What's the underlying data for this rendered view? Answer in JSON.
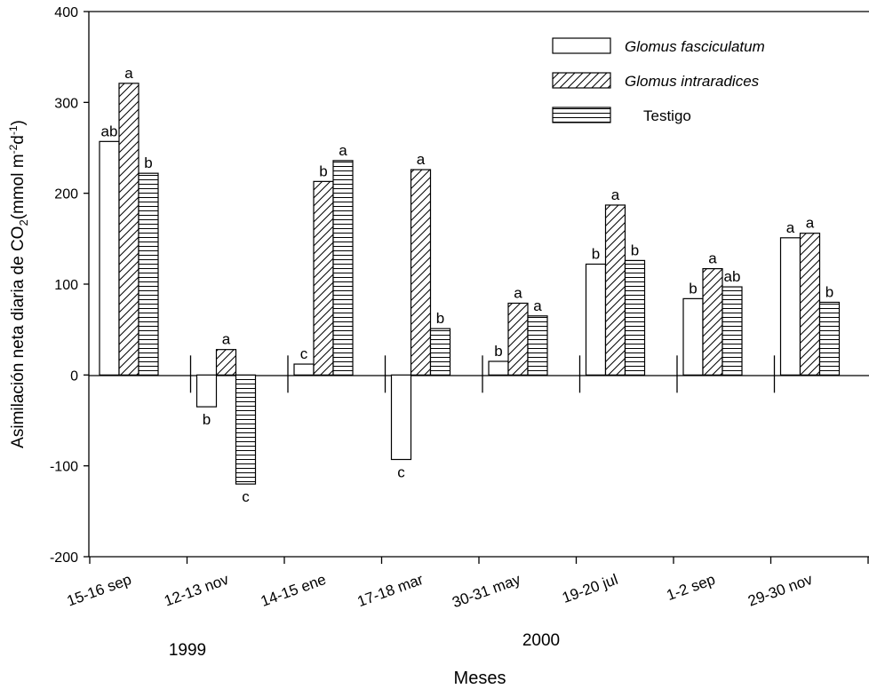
{
  "chart_data": {
    "type": "bar",
    "xlabel": "Meses",
    "ylabel_main": "Asimilación neta diaria de CO",
    "ylabel_sub": "2",
    "ylabel_units": "(mmol m",
    "ylabel_units_sup1": "-2",
    "ylabel_units_d": "d",
    "ylabel_units_sup2": "-1",
    "ylabel_units_close": ")",
    "ylim": [
      -200,
      400
    ],
    "yticks": [
      -200,
      -100,
      0,
      100,
      200,
      300,
      400
    ],
    "ytick_labels": [
      "-200",
      "-100",
      "0",
      "100",
      "200",
      "300",
      "400"
    ],
    "categories": [
      "15-16 sep",
      "12-13 nov",
      "14-15 ene",
      "17-18 mar",
      "30-31 may",
      "19-20 jul",
      "1-2 sep",
      "29-30 nov"
    ],
    "year_labels": [
      "1999",
      "2000"
    ],
    "series": [
      {
        "name": "Glomus fasciculatum",
        "pattern": "empty",
        "values": [
          257,
          -35,
          12,
          -93,
          15,
          122,
          84,
          151
        ],
        "letters": [
          "ab",
          "b",
          "c",
          "c",
          "b",
          "b",
          "b",
          "a"
        ]
      },
      {
        "name": "Glomus intraradices",
        "pattern": "diagonal",
        "values": [
          321,
          28,
          213,
          226,
          79,
          187,
          117,
          156
        ],
        "letters": [
          "a",
          "a",
          "b",
          "a",
          "a",
          "a",
          "a",
          "a"
        ]
      },
      {
        "name": "Testigo",
        "pattern": "horizontal",
        "values": [
          222,
          -120,
          236,
          51,
          65,
          126,
          97,
          80
        ],
        "letters": [
          "b",
          "c",
          "a",
          "b",
          "a",
          "b",
          "ab",
          "b"
        ]
      }
    ],
    "legend_position": "top-right",
    "grid": false,
    "colors": {
      "bar_fill": "#ffffff",
      "stroke": "#000000",
      "background": "#ffffff"
    }
  }
}
